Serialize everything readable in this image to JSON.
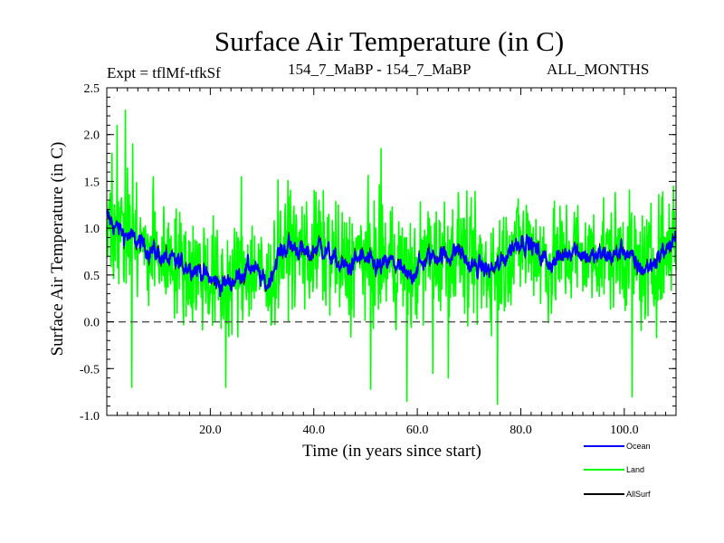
{
  "chart_data": {
    "type": "line",
    "title": "Surface Air Temperature (in C)",
    "subtitle_left": "Expt = tflMf-tfkSf",
    "subtitle_center": "154_7_MaBP - 154_7_MaBP",
    "subtitle_right": "ALL_MONTHS",
    "xlabel": "Time (in years since start)",
    "ylabel": "Surface Air Temperature (in C)",
    "xlim": [
      0,
      110
    ],
    "ylim": [
      -1.0,
      2.5
    ],
    "xticks": [
      20,
      40,
      60,
      80,
      100
    ],
    "xtick_labels": [
      "20.0",
      "40.0",
      "60.0",
      "80.0",
      "100.0"
    ],
    "yticks": [
      -1.0,
      -0.5,
      0.0,
      0.5,
      1.0,
      1.5,
      2.0,
      2.5
    ],
    "ytick_labels": [
      "-1.0",
      "-0.5",
      "0.0",
      "0.5",
      "1.0",
      "1.5",
      "2.0",
      "2.5"
    ],
    "reference_line": {
      "y": 0.0,
      "style": "dashed"
    },
    "samples_per_year": 12,
    "series": [
      {
        "name": "Ocean",
        "color": "#0000ff",
        "control_points": [
          [
            0,
            1.12
          ],
          [
            2,
            1.0
          ],
          [
            4,
            0.92
          ],
          [
            6,
            0.85
          ],
          [
            8,
            0.78
          ],
          [
            10,
            0.72
          ],
          [
            12,
            0.65
          ],
          [
            14,
            0.62
          ],
          [
            16,
            0.6
          ],
          [
            18,
            0.55
          ],
          [
            20,
            0.45
          ],
          [
            22,
            0.4
          ],
          [
            24,
            0.42
          ],
          [
            26,
            0.52
          ],
          [
            28,
            0.6
          ],
          [
            30,
            0.45
          ],
          [
            31,
            0.38
          ],
          [
            33,
            0.7
          ],
          [
            35,
            0.82
          ],
          [
            37,
            0.78
          ],
          [
            39,
            0.7
          ],
          [
            41,
            0.82
          ],
          [
            43,
            0.72
          ],
          [
            45,
            0.6
          ],
          [
            47,
            0.58
          ],
          [
            49,
            0.7
          ],
          [
            51,
            0.62
          ],
          [
            53,
            0.58
          ],
          [
            55,
            0.65
          ],
          [
            57,
            0.55
          ],
          [
            58,
            0.45
          ],
          [
            60,
            0.58
          ],
          [
            62,
            0.68
          ],
          [
            64,
            0.72
          ],
          [
            66,
            0.7
          ],
          [
            68,
            0.78
          ],
          [
            70,
            0.6
          ],
          [
            72,
            0.58
          ],
          [
            74,
            0.55
          ],
          [
            76,
            0.6
          ],
          [
            78,
            0.78
          ],
          [
            80,
            0.88
          ],
          [
            82,
            0.82
          ],
          [
            84,
            0.7
          ],
          [
            86,
            0.62
          ],
          [
            88,
            0.7
          ],
          [
            90,
            0.8
          ],
          [
            92,
            0.72
          ],
          [
            94,
            0.68
          ],
          [
            96,
            0.72
          ],
          [
            98,
            0.7
          ],
          [
            100,
            0.78
          ],
          [
            102,
            0.62
          ],
          [
            104,
            0.55
          ],
          [
            106,
            0.65
          ],
          [
            108,
            0.78
          ],
          [
            110,
            0.85
          ]
        ],
        "noise_amplitude": 0.06
      },
      {
        "name": "Land",
        "color": "#00ff00",
        "follows_series": "Ocean",
        "noise_amplitude": 0.42,
        "peaks": [
          [
            3.6,
            2.26
          ],
          [
            1.0,
            1.8
          ],
          [
            2.0,
            2.1
          ],
          [
            5.0,
            1.9
          ],
          [
            53.0,
            1.85
          ],
          [
            75.5,
            1.9
          ],
          [
            9.0,
            1.55
          ],
          [
            26.0,
            1.55
          ],
          [
            109.5,
            1.45
          ]
        ],
        "troughs": [
          [
            4.8,
            -0.7
          ],
          [
            58.0,
            -0.85
          ],
          [
            75.5,
            -0.88
          ],
          [
            51.0,
            -0.72
          ],
          [
            101.5,
            -0.8
          ],
          [
            63.0,
            -0.55
          ],
          [
            23.0,
            -0.7
          ],
          [
            66.0,
            -0.6
          ]
        ]
      },
      {
        "name": "AllSurf",
        "color": "#000000",
        "follows_series": "Ocean",
        "noise_amplitude": 0.03
      }
    ]
  }
}
